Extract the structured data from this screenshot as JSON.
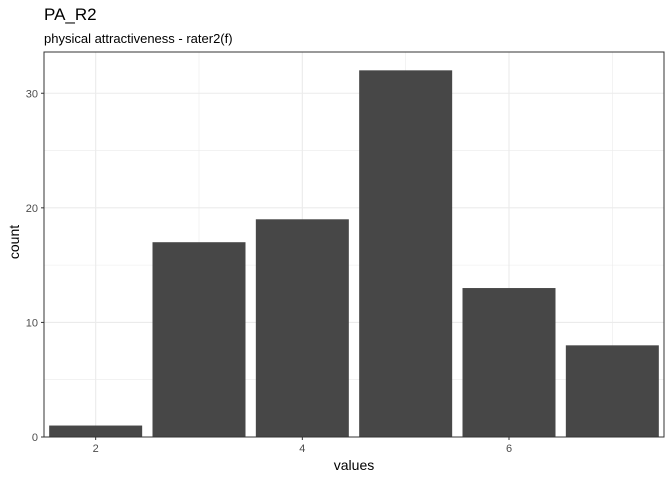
{
  "chart_data": {
    "type": "bar",
    "title": "PA_R2",
    "subtitle": "physical attractiveness - rater2(f)",
    "xlabel": "values",
    "ylabel": "count",
    "x": [
      2,
      3,
      4,
      5,
      6,
      7
    ],
    "values": [
      1,
      17,
      19,
      32,
      13,
      8
    ],
    "xlim": [
      1.5,
      7.5
    ],
    "ylim": [
      0,
      33.6
    ],
    "xticks": [
      2,
      4,
      6
    ],
    "yticks": [
      0,
      10,
      20,
      30
    ],
    "grid": true,
    "bar_color": "#474747",
    "grid_color": "#ebebeb",
    "panel_border_color": "#333333"
  }
}
